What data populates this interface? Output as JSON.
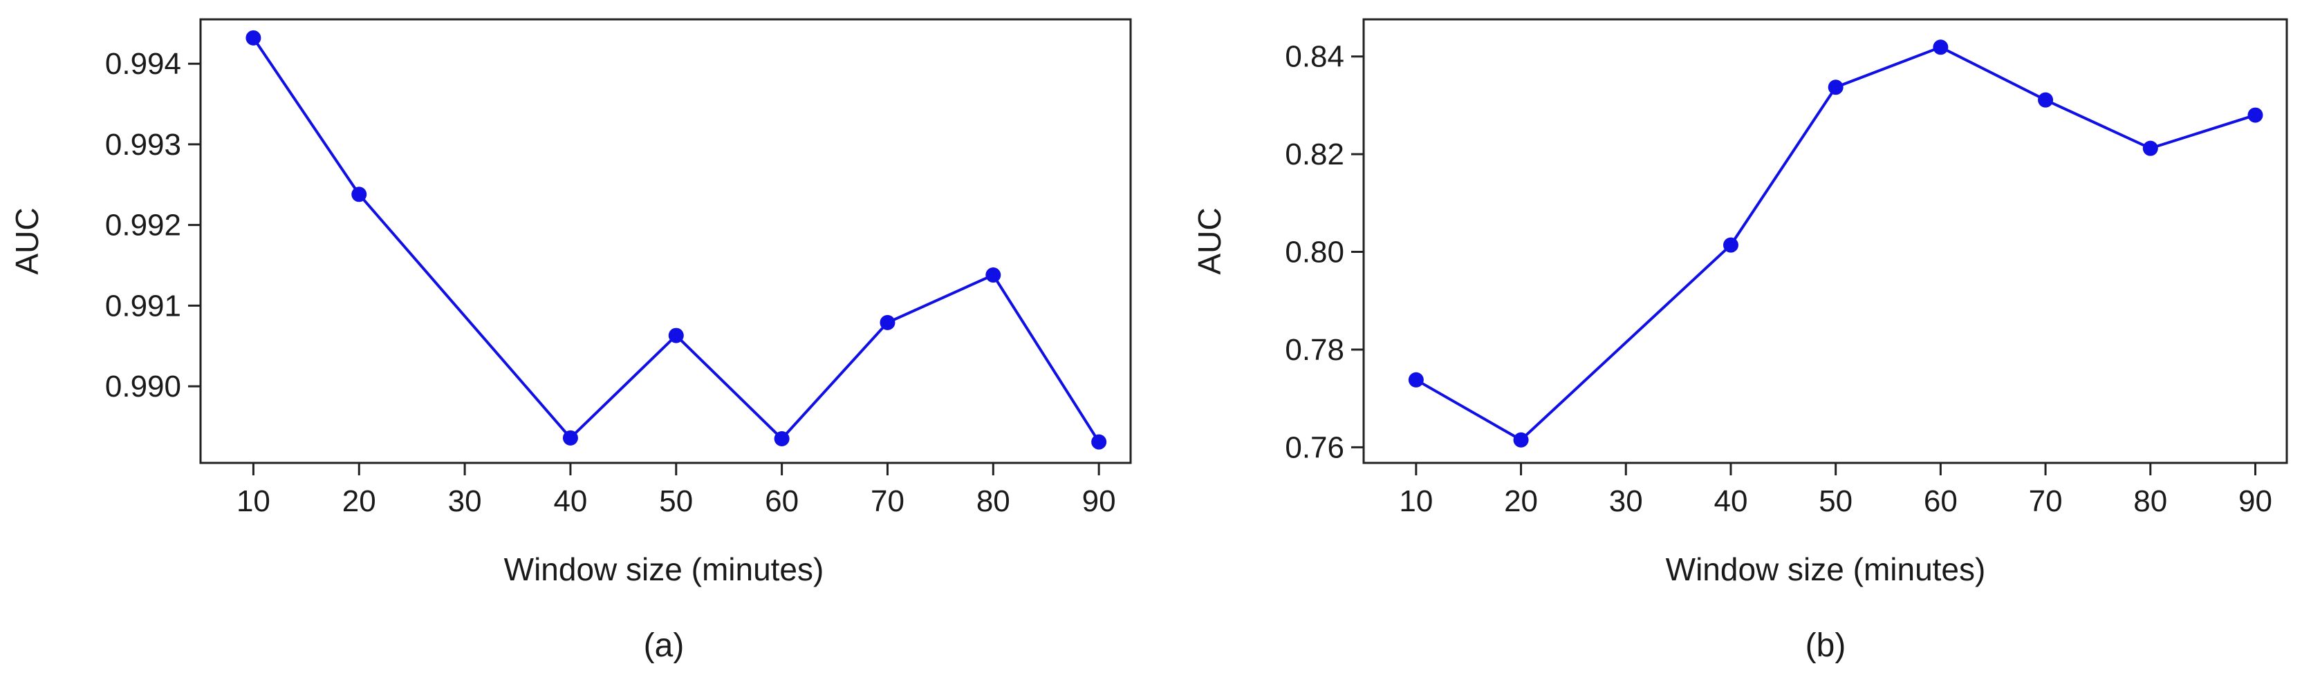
{
  "style": {
    "series_color": "#1010e6",
    "axis_color": "#222222"
  },
  "chart_data": [
    {
      "type": "line",
      "caption": "(a)",
      "xlabel": "Window size (minutes)",
      "ylabel": "AUC",
      "xticks": [
        10,
        20,
        30,
        40,
        50,
        60,
        70,
        80,
        90
      ],
      "xlim": [
        5,
        93
      ],
      "yticks": [
        "0.990",
        "0.991",
        "0.992",
        "0.993",
        "0.994"
      ],
      "ylim": [
        0.98905,
        0.99455
      ],
      "series": [
        {
          "x": [
            10,
            20,
            40,
            50,
            60,
            70,
            80,
            90
          ],
          "y": [
            0.99432,
            0.99238,
            0.98936,
            0.99063,
            0.98935,
            0.99079,
            0.99138,
            0.98931
          ]
        }
      ]
    },
    {
      "type": "line",
      "caption": "(b)",
      "xlabel": "Window size (minutes)",
      "ylabel": "AUC",
      "xticks": [
        10,
        20,
        30,
        40,
        50,
        60,
        70,
        80,
        90
      ],
      "xlim": [
        5,
        93
      ],
      "yticks": [
        "0.76",
        "0.78",
        "0.80",
        "0.82",
        "0.84"
      ],
      "ylim": [
        0.7568,
        0.8476
      ],
      "series": [
        {
          "x": [
            10,
            20,
            40,
            50,
            60,
            70,
            80,
            90
          ],
          "y": [
            0.7738,
            0.7615,
            0.8014,
            0.8337,
            0.8419,
            0.8311,
            0.8212,
            0.828
          ]
        }
      ]
    }
  ]
}
